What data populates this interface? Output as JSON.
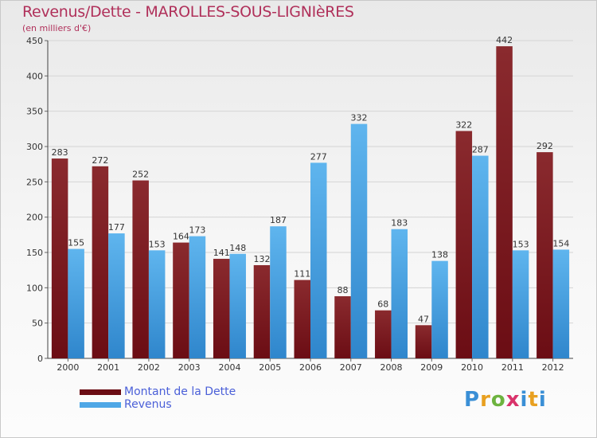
{
  "title": "Revenus/Dette - MAROLLES-SOUS-LIGNIèRES",
  "subtitle": "(en milliers d'€)",
  "logo": {
    "text": "Proxiti",
    "letters": [
      "P",
      "r",
      "o",
      "x",
      "i",
      "t",
      "i"
    ]
  },
  "colors": {
    "dette": "#6b0d14",
    "revenus": "#4ea7e6",
    "title": "#b0305a",
    "legend_text": "#4a5fd8"
  },
  "chart_data": {
    "type": "bar",
    "categories": [
      "2000",
      "2001",
      "2002",
      "2003",
      "2004",
      "2005",
      "2006",
      "2007",
      "2008",
      "2009",
      "2010",
      "2011",
      "2012"
    ],
    "series": [
      {
        "name": "Montant de la Dette",
        "values": [
          283,
          272,
          252,
          164,
          141,
          132,
          111,
          88,
          68,
          47,
          322,
          442,
          292
        ]
      },
      {
        "name": "Revenus",
        "values": [
          155,
          177,
          153,
          173,
          148,
          187,
          277,
          332,
          183,
          138,
          287,
          153,
          154
        ]
      }
    ],
    "ylim": [
      0,
      450
    ],
    "yticks": [
      0,
      50,
      100,
      150,
      200,
      250,
      300,
      350,
      400,
      450
    ],
    "grid": true,
    "legend_position": "bottom-left"
  }
}
